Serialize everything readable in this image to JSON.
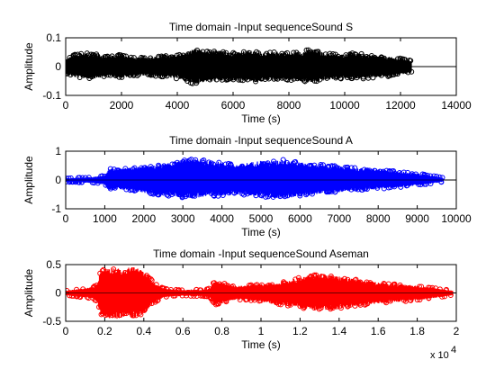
{
  "figure": {
    "background": "#ffffff",
    "axes_color": "#000000"
  },
  "chart_data": [
    {
      "type": "area",
      "title": "Time domain -Input sequenceSound S",
      "xlabel": "Time (s)",
      "ylabel": "Amplitude",
      "xlim": [
        0,
        14000
      ],
      "ylim": [
        -0.1,
        0.1
      ],
      "x_ticks": [
        0,
        2000,
        4000,
        6000,
        8000,
        10000,
        12000,
        14000
      ],
      "x_tick_labels": [
        "0",
        "2000",
        "4000",
        "6000",
        "8000",
        "10000",
        "12000",
        "14000"
      ],
      "y_ticks": [
        -0.1,
        0,
        0.1
      ],
      "y_tick_labels": [
        "-0.1",
        "0",
        "0.1"
      ],
      "series": [
        {
          "color": "#000000",
          "marker": "circle",
          "x_end": 12400,
          "envelope_x": [
            0,
            300,
            700,
            1100,
            1500,
            2000,
            2500,
            3000,
            3500,
            4000,
            4300,
            4600,
            5000,
            5400,
            5800,
            6200,
            6500,
            6800,
            7200,
            7600,
            8000,
            8500,
            8800,
            9300,
            9800,
            10300,
            10800,
            11300,
            11800,
            12200,
            12400
          ],
          "envelope_y": [
            0.025,
            0.04,
            0.045,
            0.042,
            0.035,
            0.04,
            0.03,
            0.032,
            0.035,
            0.04,
            0.045,
            0.06,
            0.05,
            0.055,
            0.045,
            0.05,
            0.055,
            0.05,
            0.045,
            0.05,
            0.045,
            0.05,
            0.06,
            0.045,
            0.04,
            0.045,
            0.04,
            0.035,
            0.03,
            0.025,
            0.02
          ],
          "envelope_y_neg": [
            -0.025,
            -0.035,
            -0.04,
            -0.04,
            -0.032,
            -0.038,
            -0.03,
            -0.03,
            -0.035,
            -0.04,
            -0.045,
            -0.06,
            -0.05,
            -0.05,
            -0.045,
            -0.05,
            -0.05,
            -0.05,
            -0.045,
            -0.045,
            -0.045,
            -0.05,
            -0.055,
            -0.045,
            -0.04,
            -0.04,
            -0.04,
            -0.035,
            -0.03,
            -0.025,
            -0.02
          ],
          "baseline_y": 0
        }
      ]
    },
    {
      "type": "area",
      "title": "Time domain -Input sequenceSound A",
      "xlabel": "Time (s)",
      "ylabel": "Amplitude",
      "xlim": [
        0,
        10000
      ],
      "ylim": [
        -1,
        1
      ],
      "x_ticks": [
        0,
        1000,
        2000,
        3000,
        4000,
        5000,
        6000,
        7000,
        8000,
        9000,
        10000
      ],
      "x_tick_labels": [
        "0",
        "1000",
        "2000",
        "3000",
        "4000",
        "5000",
        "6000",
        "7000",
        "8000",
        "9000",
        "10000"
      ],
      "y_ticks": [
        -1,
        0,
        1
      ],
      "y_tick_labels": [
        "-1",
        "0",
        "1"
      ],
      "series": [
        {
          "color": "#0000ff",
          "marker": "circle",
          "x_end": 9650,
          "envelope_x": [
            0,
            300,
            700,
            1000,
            1100,
            1300,
            1600,
            2000,
            2400,
            2800,
            3100,
            3400,
            3700,
            4000,
            4300,
            4700,
            5000,
            5300,
            5600,
            5900,
            6200,
            6600,
            7000,
            7500,
            8000,
            8500,
            9000,
            9400,
            9650
          ],
          "envelope_y": [
            0.06,
            0.08,
            0.1,
            0.15,
            0.4,
            0.35,
            0.4,
            0.45,
            0.5,
            0.6,
            0.72,
            0.68,
            0.62,
            0.6,
            0.5,
            0.58,
            0.65,
            0.62,
            0.7,
            0.6,
            0.55,
            0.5,
            0.45,
            0.4,
            0.35,
            0.3,
            0.22,
            0.15,
            0.08
          ],
          "envelope_y_neg": [
            -0.06,
            -0.08,
            -0.1,
            -0.15,
            -0.35,
            -0.3,
            -0.35,
            -0.42,
            -0.5,
            -0.55,
            -0.6,
            -0.58,
            -0.55,
            -0.52,
            -0.48,
            -0.5,
            -0.55,
            -0.6,
            -0.62,
            -0.55,
            -0.5,
            -0.45,
            -0.4,
            -0.35,
            -0.3,
            -0.25,
            -0.18,
            -0.12,
            -0.06
          ],
          "baseline_y": 0
        }
      ]
    },
    {
      "type": "area",
      "title": "Time domain -Input sequenceSound Aseman",
      "xlabel": "Time (s)",
      "ylabel": "Amplitude",
      "xlim": [
        0,
        20000
      ],
      "ylim": [
        -0.5,
        0.5
      ],
      "x_ticks": [
        0,
        2000,
        4000,
        6000,
        8000,
        10000,
        12000,
        14000,
        16000,
        18000,
        20000
      ],
      "x_tick_labels": [
        "0",
        "0.2",
        "0.4",
        "0.6",
        "0.8",
        "1",
        "1.2",
        "1.4",
        "1.6",
        "1.8",
        "2"
      ],
      "x_multiplier": "x 10",
      "x_multiplier_exp": "4",
      "y_ticks": [
        -0.5,
        0,
        0.5
      ],
      "y_tick_labels": [
        "-0.5",
        "0",
        "0.5"
      ],
      "series": [
        {
          "color": "#ff0000",
          "marker": "circle",
          "x_end": 19800,
          "envelope_x": [
            0,
            500,
            1000,
            1400,
            1600,
            1800,
            2200,
            2600,
            3000,
            3400,
            3800,
            4200,
            4600,
            5000,
            5500,
            6000,
            6500,
            7000,
            7400,
            7600,
            8000,
            8500,
            9000,
            9500,
            10000,
            10500,
            11000,
            11500,
            12000,
            12500,
            13000,
            13500,
            14000,
            14500,
            15000,
            15500,
            16000,
            16500,
            17000,
            17500,
            18000,
            18500,
            19000,
            19400,
            19800
          ],
          "envelope_y": [
            0.04,
            0.06,
            0.08,
            0.1,
            0.15,
            0.4,
            0.45,
            0.42,
            0.38,
            0.46,
            0.4,
            0.3,
            0.15,
            0.08,
            0.06,
            0.05,
            0.06,
            0.05,
            0.08,
            0.2,
            0.18,
            0.12,
            0.12,
            0.14,
            0.15,
            0.16,
            0.18,
            0.22,
            0.26,
            0.3,
            0.32,
            0.3,
            0.28,
            0.25,
            0.22,
            0.2,
            0.18,
            0.16,
            0.15,
            0.14,
            0.12,
            0.1,
            0.08,
            0.06,
            0.04
          ],
          "envelope_y_neg": [
            -0.04,
            -0.06,
            -0.08,
            -0.1,
            -0.15,
            -0.38,
            -0.42,
            -0.44,
            -0.4,
            -0.42,
            -0.38,
            -0.28,
            -0.15,
            -0.08,
            -0.06,
            -0.05,
            -0.06,
            -0.05,
            -0.08,
            -0.2,
            -0.18,
            -0.12,
            -0.12,
            -0.14,
            -0.15,
            -0.18,
            -0.2,
            -0.22,
            -0.25,
            -0.28,
            -0.3,
            -0.28,
            -0.26,
            -0.24,
            -0.22,
            -0.2,
            -0.18,
            -0.16,
            -0.15,
            -0.14,
            -0.12,
            -0.1,
            -0.08,
            -0.06,
            -0.04
          ],
          "baseline_y": 0
        }
      ]
    }
  ]
}
